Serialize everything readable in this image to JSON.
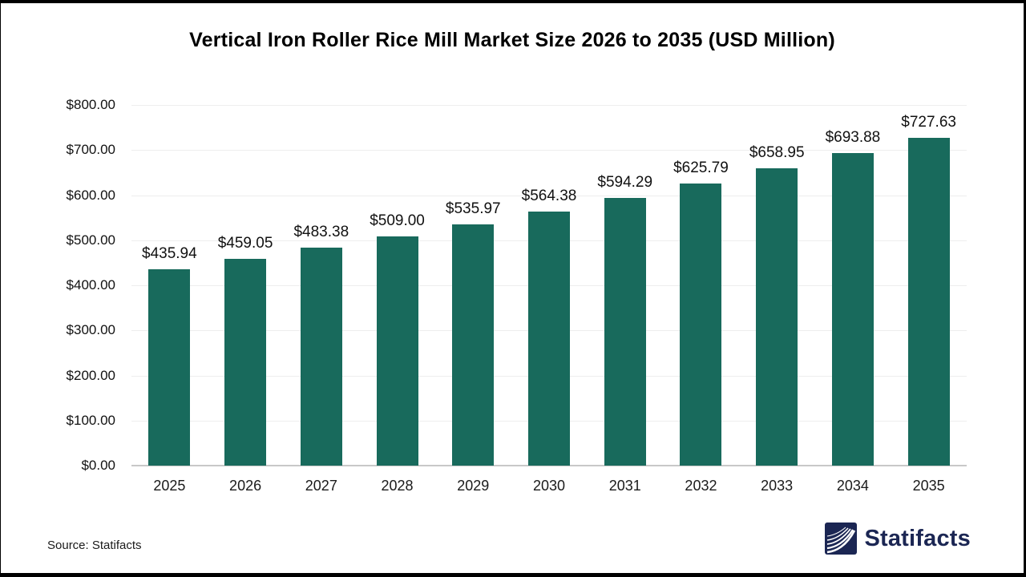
{
  "title": "Vertical Iron Roller Rice Mill Market Size 2026 to 2035 (USD Million)",
  "chart_data": {
    "type": "bar",
    "title": "Vertical Iron Roller Rice Mill Market Size 2026 to 2035 (USD Million)",
    "categories": [
      "2025",
      "2026",
      "2027",
      "2028",
      "2029",
      "2030",
      "2031",
      "2032",
      "2033",
      "2034",
      "2035"
    ],
    "values": [
      435.94,
      459.05,
      483.38,
      509.0,
      535.97,
      564.38,
      594.29,
      625.79,
      658.95,
      693.88,
      727.63
    ],
    "value_labels": [
      "$435.94",
      "$459.05",
      "$483.38",
      "$509.00",
      "$535.97",
      "$564.38",
      "$594.29",
      "$625.79",
      "$658.95",
      "$693.88",
      "$727.63"
    ],
    "xlabel": "",
    "ylabel": "",
    "ylim": [
      0,
      800
    ],
    "ytick_step": 100,
    "ytick_labels": [
      "$0.00",
      "$100.00",
      "$200.00",
      "$300.00",
      "$400.00",
      "$500.00",
      "$600.00",
      "$700.00",
      "$800.00"
    ],
    "grid": true,
    "legend_position": "none",
    "bar_color": "#186A5C"
  },
  "footer": {
    "source": "Source: Statifacts",
    "brand": "Statifacts",
    "brand_color": "#1B2653"
  }
}
